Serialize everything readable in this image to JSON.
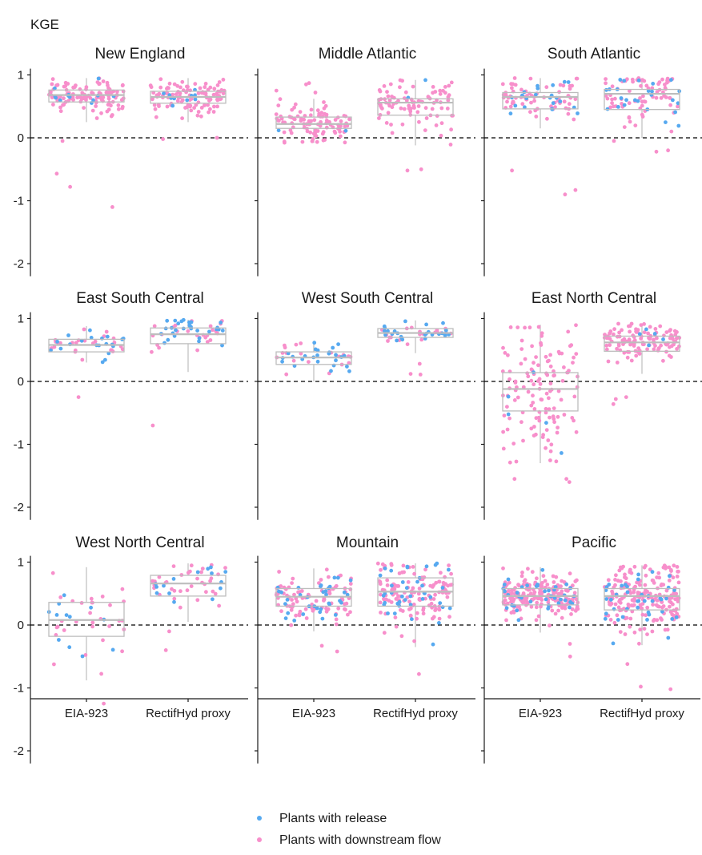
{
  "chart_data": {
    "type": "scatter",
    "y_title": "KGE",
    "categories": [
      "EIA-923",
      "RectifHyd proxy"
    ],
    "y_ticks": [
      1,
      0,
      -1,
      -2
    ],
    "y_tick_labels": [
      "1",
      "0",
      "-1",
      "-2"
    ],
    "ylim": [
      -2.2,
      1.1
    ],
    "reference_line": 0,
    "grid": false,
    "legend_position": "bottom",
    "colors": {
      "release": "#56a9f0",
      "downstream": "#f78fcb",
      "box": "#bdbdbd",
      "axis": "#1a1a1a"
    },
    "legend": [
      {
        "key": "release",
        "label": "Plants with release"
      },
      {
        "key": "downstream",
        "label": "Plants with downstream flow"
      }
    ],
    "panels": [
      {
        "title": "New England",
        "groups": [
          {
            "category": "EIA-923",
            "box": {
              "lower_whisker": 0.25,
              "q1": 0.57,
              "median": 0.68,
              "q3": 0.76,
              "upper_whisker": 0.95
            },
            "n_release": 12,
            "n_downstream": 110,
            "spread": 0.14,
            "outliers": [
              -0.05,
              -0.57,
              -0.78,
              -1.1
            ]
          },
          {
            "category": "RectifHyd proxy",
            "box": {
              "lower_whisker": 0.25,
              "q1": 0.55,
              "median": 0.65,
              "q3": 0.74,
              "upper_whisker": 0.95
            },
            "n_release": 10,
            "n_downstream": 110,
            "spread": 0.14,
            "outliers": [
              0.0,
              -0.02
            ]
          }
        ]
      },
      {
        "title": "Middle Atlantic",
        "groups": [
          {
            "category": "EIA-923",
            "box": {
              "lower_whisker": -0.08,
              "q1": 0.15,
              "median": 0.22,
              "q3": 0.33,
              "upper_whisker": 0.62
            },
            "n_release": 2,
            "n_downstream": 100,
            "spread": 0.15,
            "outliers": [
              0.87,
              0.85,
              0.75,
              0.72
            ]
          },
          {
            "category": "RectifHyd proxy",
            "box": {
              "lower_whisker": -0.12,
              "q1": 0.36,
              "median": 0.56,
              "q3": 0.62,
              "upper_whisker": 0.92
            },
            "n_release": 2,
            "n_downstream": 90,
            "spread": 0.2,
            "outliers": [
              -0.5,
              -0.52
            ]
          }
        ]
      },
      {
        "title": "South Atlantic",
        "groups": [
          {
            "category": "EIA-923",
            "box": {
              "lower_whisker": 0.15,
              "q1": 0.46,
              "median": 0.65,
              "q3": 0.72,
              "upper_whisker": 0.95
            },
            "n_release": 22,
            "n_downstream": 70,
            "spread": 0.17,
            "outliers": [
              -0.52,
              -0.9,
              -0.83
            ]
          },
          {
            "category": "RectifHyd proxy",
            "box": {
              "lower_whisker": 0.0,
              "q1": 0.45,
              "median": 0.7,
              "q3": 0.77,
              "upper_whisker": 0.95
            },
            "n_release": 25,
            "n_downstream": 75,
            "spread": 0.2,
            "outliers": [
              -0.2,
              -0.22,
              -0.05
            ]
          }
        ]
      },
      {
        "title": "East South Central",
        "groups": [
          {
            "category": "EIA-923",
            "box": {
              "lower_whisker": 0.3,
              "q1": 0.47,
              "median": 0.58,
              "q3": 0.67,
              "upper_whisker": 0.88
            },
            "n_release": 20,
            "n_downstream": 25,
            "spread": 0.13,
            "outliers": [
              -0.25
            ]
          },
          {
            "category": "RectifHyd proxy",
            "box": {
              "lower_whisker": 0.15,
              "q1": 0.6,
              "median": 0.75,
              "q3": 0.85,
              "upper_whisker": 0.98
            },
            "n_release": 30,
            "n_downstream": 25,
            "spread": 0.16,
            "outliers": [
              -0.7
            ]
          }
        ]
      },
      {
        "title": "West South Central",
        "groups": [
          {
            "category": "EIA-923",
            "box": {
              "lower_whisker": 0.0,
              "q1": 0.27,
              "median": 0.38,
              "q3": 0.47,
              "upper_whisker": 0.62
            },
            "n_release": 25,
            "n_downstream": 20,
            "spread": 0.12,
            "outliers": []
          },
          {
            "category": "RectifHyd proxy",
            "box": {
              "lower_whisker": 0.45,
              "q1": 0.7,
              "median": 0.77,
              "q3": 0.84,
              "upper_whisker": 0.97
            },
            "n_release": 25,
            "n_downstream": 20,
            "spread": 0.09,
            "outliers": [
              0.12,
              0.11,
              0.28
            ]
          }
        ]
      },
      {
        "title": "East North Central",
        "groups": [
          {
            "category": "EIA-923",
            "box": {
              "lower_whisker": -1.3,
              "q1": -0.47,
              "median": -0.12,
              "q3": 0.14,
              "upper_whisker": 0.9
            },
            "n_release": 5,
            "n_downstream": 130,
            "spread": 0.55,
            "outliers": [
              -1.55,
              -1.6,
              -1.55
            ]
          },
          {
            "category": "RectifHyd proxy",
            "box": {
              "lower_whisker": 0.12,
              "q1": 0.48,
              "median": 0.62,
              "q3": 0.72,
              "upper_whisker": 0.92
            },
            "n_release": 5,
            "n_downstream": 120,
            "spread": 0.16,
            "outliers": [
              -0.28,
              -0.36,
              -0.25
            ]
          }
        ]
      },
      {
        "title": "West North Central",
        "groups": [
          {
            "category": "EIA-923",
            "box": {
              "lower_whisker": -0.88,
              "q1": -0.18,
              "median": 0.08,
              "q3": 0.36,
              "upper_whisker": 0.92
            },
            "n_release": 12,
            "n_downstream": 30,
            "spread": 0.35,
            "outliers": [
              -1.25
            ]
          },
          {
            "category": "RectifHyd proxy",
            "box": {
              "lower_whisker": 0.05,
              "q1": 0.46,
              "median": 0.66,
              "q3": 0.79,
              "upper_whisker": 0.98
            },
            "n_release": 15,
            "n_downstream": 35,
            "spread": 0.17,
            "outliers": [
              -0.4,
              -0.1
            ]
          }
        ]
      },
      {
        "title": "Mountain",
        "groups": [
          {
            "category": "EIA-923",
            "box": {
              "lower_whisker": -0.1,
              "q1": 0.3,
              "median": 0.45,
              "q3": 0.58,
              "upper_whisker": 0.9
            },
            "n_release": 35,
            "n_downstream": 90,
            "spread": 0.18,
            "outliers": [
              -0.42,
              -0.33
            ]
          },
          {
            "category": "RectifHyd proxy",
            "box": {
              "lower_whisker": -0.35,
              "q1": 0.3,
              "median": 0.53,
              "q3": 0.75,
              "upper_whisker": 0.98
            },
            "n_release": 40,
            "n_downstream": 130,
            "spread": 0.25,
            "outliers": [
              -0.78
            ]
          }
        ]
      },
      {
        "title": "Pacific",
        "groups": [
          {
            "category": "EIA-923",
            "box": {
              "lower_whisker": -0.12,
              "q1": 0.32,
              "median": 0.46,
              "q3": 0.58,
              "upper_whisker": 0.92
            },
            "n_release": 40,
            "n_downstream": 200,
            "spread": 0.16,
            "outliers": [
              -0.3,
              -0.5
            ]
          },
          {
            "category": "RectifHyd proxy",
            "box": {
              "lower_whisker": -0.32,
              "q1": 0.24,
              "median": 0.46,
              "q3": 0.58,
              "upper_whisker": 0.95
            },
            "n_release": 40,
            "n_downstream": 200,
            "spread": 0.25,
            "outliers": [
              -0.98,
              -1.02,
              -0.62
            ]
          }
        ]
      }
    ]
  }
}
